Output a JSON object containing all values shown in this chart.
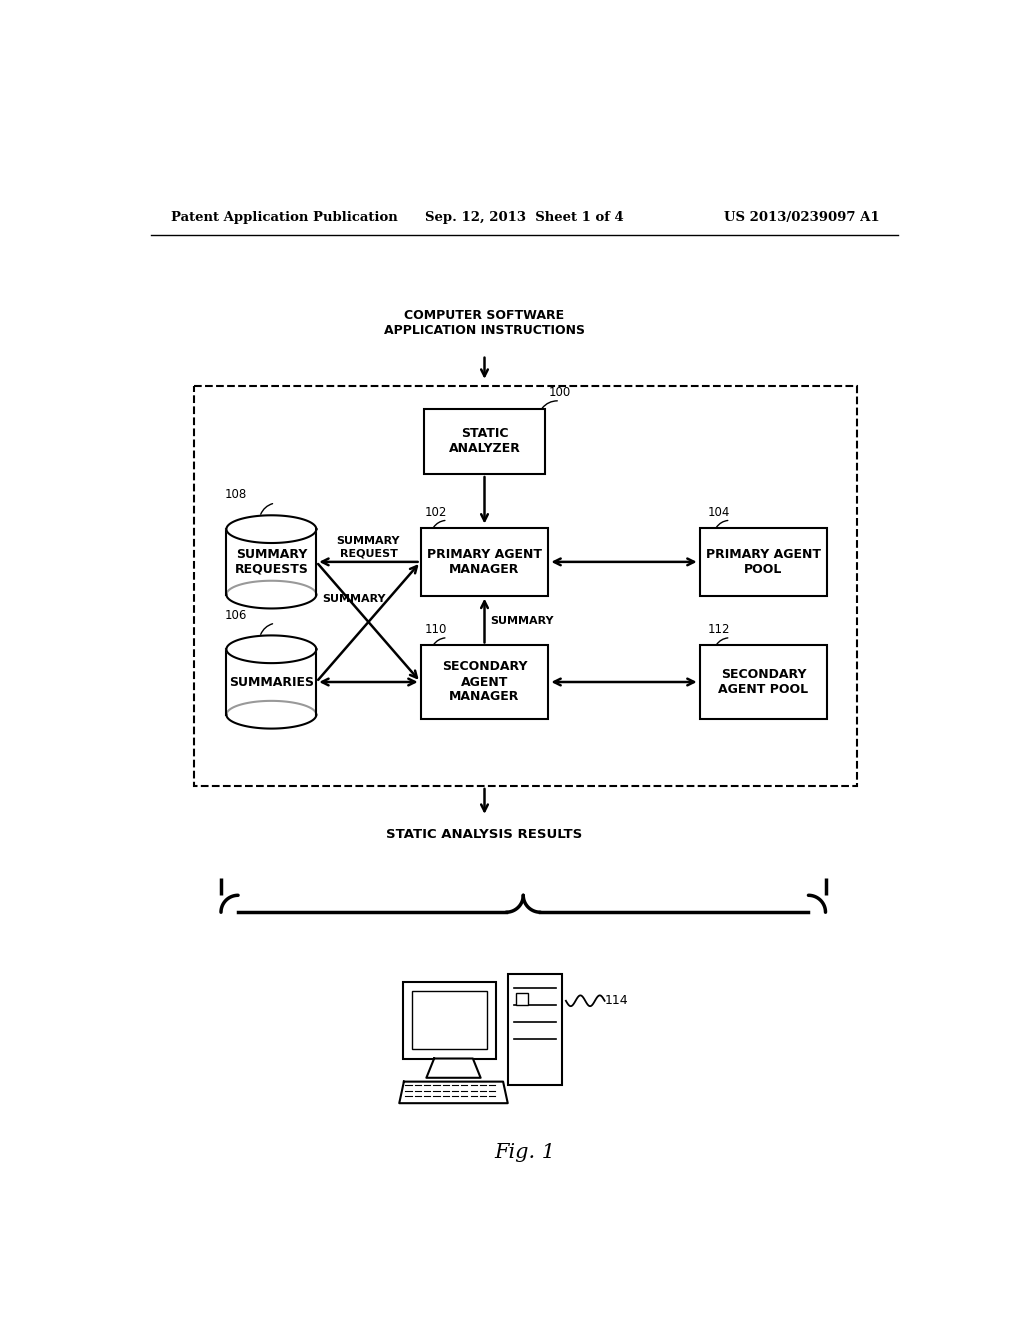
{
  "bg_color": "#ffffff",
  "header_left": "Patent Application Publication",
  "header_center": "Sep. 12, 2013  Sheet 1 of 4",
  "header_right": "US 2013/0239097 A1",
  "top_label": "COMPUTER SOFTWARE\nAPPLICATION INSTRUCTIONS",
  "static_analyzer_label": "STATIC\nANALYZER",
  "static_analyzer_num": "100",
  "primary_manager_label": "PRIMARY AGENT\nMANAGER",
  "primary_manager_num": "102",
  "primary_pool_label": "PRIMARY AGENT\nPOOL",
  "primary_pool_num": "104",
  "summary_requests_label": "SUMMARY\nREQUESTS",
  "summary_requests_num": "108",
  "summaries_label": "SUMMARIES",
  "summaries_num": "106",
  "secondary_manager_label": "SECONDARY\nAGENT\nMANAGER",
  "secondary_manager_num": "110",
  "secondary_pool_label": "SECONDARY\nAGENT POOL",
  "secondary_pool_num": "112",
  "computer_num": "114",
  "label_summary_request": "SUMMARY\nREQUEST",
  "label_summary_left": "SUMMARY",
  "label_summary_right": "SUMMARY",
  "static_analysis_results": "STATIC ANALYSIS RESULTS",
  "fig_label": "Fig. 1",
  "line_color": "#000000"
}
